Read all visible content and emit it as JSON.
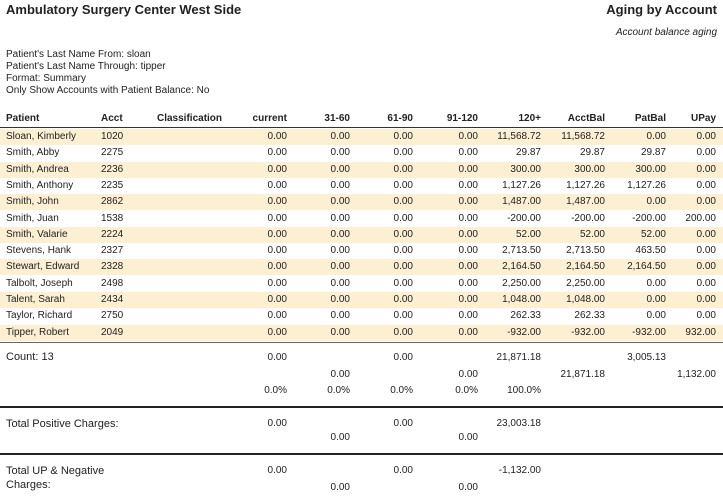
{
  "report": {
    "org": "Ambulatory Surgery Center West Side",
    "title": "Aging by Account",
    "subtitle": "Account balance aging"
  },
  "filters": [
    "Patient's Last Name From: sloan",
    "Patient's Last Name Through: tipper",
    "Format: Summary",
    "Only Show Accounts with Patient Balance: No"
  ],
  "columns": [
    "Patient",
    "Acct",
    "Classification",
    "current",
    "31-60",
    "61-90",
    "91-120",
    "120+",
    "AcctBal",
    "PatBal",
    "UPay"
  ],
  "rows": [
    {
      "patient": "Sloan, Kimberly",
      "acct": "1020",
      "cls": "",
      "current": "0.00",
      "d31": "0.00",
      "d61": "0.00",
      "d91": "0.00",
      "d120": "11,568.72",
      "acctbal": "11,568.72",
      "patbal": "0.00",
      "upay": "0.00"
    },
    {
      "patient": "Smith, Abby",
      "acct": "2275",
      "cls": "",
      "current": "0.00",
      "d31": "0.00",
      "d61": "0.00",
      "d91": "0.00",
      "d120": "29.87",
      "acctbal": "29.87",
      "patbal": "29.87",
      "upay": "0.00"
    },
    {
      "patient": "Smith, Andrea",
      "acct": "2236",
      "cls": "",
      "current": "0.00",
      "d31": "0.00",
      "d61": "0.00",
      "d91": "0.00",
      "d120": "300.00",
      "acctbal": "300.00",
      "patbal": "300.00",
      "upay": "0.00"
    },
    {
      "patient": "Smith, Anthony",
      "acct": "2235",
      "cls": "",
      "current": "0.00",
      "d31": "0.00",
      "d61": "0.00",
      "d91": "0.00",
      "d120": "1,127.26",
      "acctbal": "1,127.26",
      "patbal": "1,127.26",
      "upay": "0.00"
    },
    {
      "patient": "Smith, John",
      "acct": "2862",
      "cls": "",
      "current": "0.00",
      "d31": "0.00",
      "d61": "0.00",
      "d91": "0.00",
      "d120": "1,487.00",
      "acctbal": "1,487.00",
      "patbal": "0.00",
      "upay": "0.00"
    },
    {
      "patient": "Smith, Juan",
      "acct": "1538",
      "cls": "",
      "current": "0.00",
      "d31": "0.00",
      "d61": "0.00",
      "d91": "0.00",
      "d120": "-200.00",
      "acctbal": "-200.00",
      "patbal": "-200.00",
      "upay": "200.00"
    },
    {
      "patient": "Smith, Valarie",
      "acct": "2224",
      "cls": "",
      "current": "0.00",
      "d31": "0.00",
      "d61": "0.00",
      "d91": "0.00",
      "d120": "52.00",
      "acctbal": "52.00",
      "patbal": "52.00",
      "upay": "0.00"
    },
    {
      "patient": "Stevens, Hank",
      "acct": "2327",
      "cls": "",
      "current": "0.00",
      "d31": "0.00",
      "d61": "0.00",
      "d91": "0.00",
      "d120": "2,713.50",
      "acctbal": "2,713.50",
      "patbal": "463.50",
      "upay": "0.00"
    },
    {
      "patient": "Stewart, Edward",
      "acct": "2328",
      "cls": "",
      "current": "0.00",
      "d31": "0.00",
      "d61": "0.00",
      "d91": "0.00",
      "d120": "2,164.50",
      "acctbal": "2,164.50",
      "patbal": "2,164.50",
      "upay": "0.00"
    },
    {
      "patient": "Talbolt, Joseph",
      "acct": "2498",
      "cls": "",
      "current": "0.00",
      "d31": "0.00",
      "d61": "0.00",
      "d91": "0.00",
      "d120": "2,250.00",
      "acctbal": "2,250.00",
      "patbal": "0.00",
      "upay": "0.00"
    },
    {
      "patient": "Talent, Sarah",
      "acct": "2434",
      "cls": "",
      "current": "0.00",
      "d31": "0.00",
      "d61": "0.00",
      "d91": "0.00",
      "d120": "1,048.00",
      "acctbal": "1,048.00",
      "patbal": "0.00",
      "upay": "0.00"
    },
    {
      "patient": "Taylor, Richard",
      "acct": "2750",
      "cls": "",
      "current": "0.00",
      "d31": "0.00",
      "d61": "0.00",
      "d91": "0.00",
      "d120": "262.33",
      "acctbal": "262.33",
      "patbal": "0.00",
      "upay": "0.00"
    },
    {
      "patient": "Tipper, Robert",
      "acct": "2049",
      "cls": "",
      "current": "0.00",
      "d31": "0.00",
      "d61": "0.00",
      "d91": "0.00",
      "d120": "-932.00",
      "acctbal": "-932.00",
      "patbal": "-932.00",
      "upay": "932.00"
    }
  ],
  "summary": {
    "count_label": "Count: 13",
    "current": "0.00",
    "d61": "0.00",
    "d120": "21,871.18",
    "patbal": "3,005.13",
    "d31": "0.00",
    "d91": "0.00",
    "acctbal": "21,871.18",
    "upay": "1,132.00",
    "pct_current": "0.0%",
    "pct_31": "0.0%",
    "pct_61": "0.0%",
    "pct_91": "0.0%",
    "pct_120": "100.0%"
  },
  "positive": {
    "label": "Total Positive Charges:",
    "current": "0.00",
    "d61": "0.00",
    "d120": "23,003.18",
    "d31": "0.00",
    "d91": "0.00"
  },
  "negative": {
    "label_line1": "Total UP & Negative",
    "label_line2": "Charges:",
    "current": "0.00",
    "d61": "0.00",
    "d120": "-1,132.00",
    "d31": "0.00",
    "d91": "0.00"
  },
  "colors": {
    "row_shade": "#fdf0d2"
  }
}
